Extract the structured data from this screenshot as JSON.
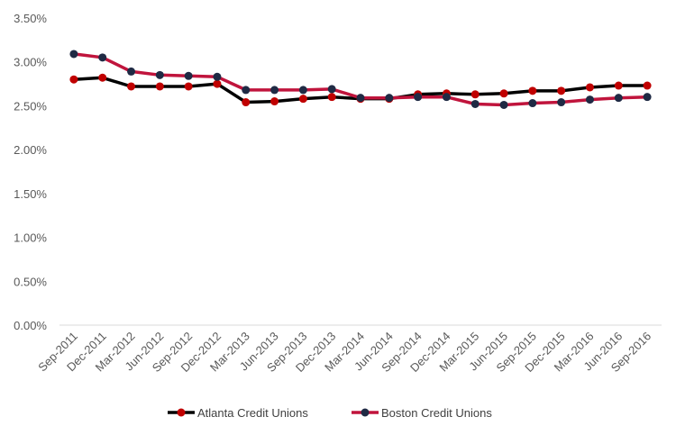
{
  "chart_data": {
    "type": "line",
    "title": "",
    "xlabel": "",
    "ylabel": "",
    "ylim": [
      0,
      3.5
    ],
    "y_ticks": [
      "0.00%",
      "0.50%",
      "1.00%",
      "1.50%",
      "2.00%",
      "2.50%",
      "3.00%",
      "3.50%"
    ],
    "grid": false,
    "legend_position": "bottom",
    "categories": [
      "Sep-2011",
      "Dec-2011",
      "Mar-2012",
      "Jun-2012",
      "Sep-2012",
      "Dec-2012",
      "Mar-2013",
      "Jun-2013",
      "Sep-2013",
      "Dec-2013",
      "Mar-2014",
      "Jun-2014",
      "Sep-2014",
      "Dec-2014",
      "Mar-2015",
      "Jun-2015",
      "Sep-2015",
      "Dec-2015",
      "Mar-2016",
      "Jun-2016",
      "Sep-2016"
    ],
    "series": [
      {
        "name": "Atlanta Credit Unions",
        "line_color": "#000000",
        "marker_color": "#C00000",
        "values": [
          2.8,
          2.82,
          2.72,
          2.72,
          2.72,
          2.75,
          2.54,
          2.55,
          2.58,
          2.6,
          2.58,
          2.58,
          2.63,
          2.64,
          2.63,
          2.64,
          2.67,
          2.67,
          2.71,
          2.73,
          2.73
        ]
      },
      {
        "name": "Boston Credit Unions",
        "line_color": "#C0143C",
        "marker_color": "#1F2A44",
        "values": [
          3.09,
          3.05,
          2.89,
          2.85,
          2.84,
          2.83,
          2.68,
          2.68,
          2.68,
          2.69,
          2.59,
          2.59,
          2.6,
          2.6,
          2.52,
          2.51,
          2.53,
          2.54,
          2.57,
          2.59,
          2.6
        ]
      }
    ]
  }
}
